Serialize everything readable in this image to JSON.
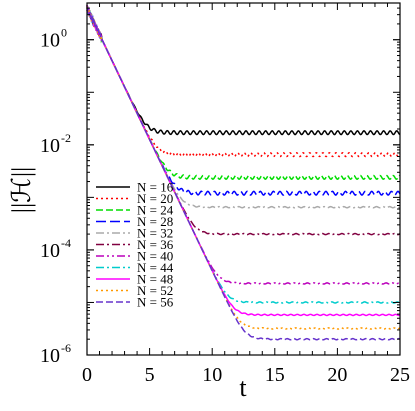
{
  "chart_data": {
    "type": "line",
    "xlabel": "t",
    "ylabel": "||ℋ||",
    "x_ticks": [
      "0",
      "5",
      "10",
      "15",
      "20",
      "25"
    ],
    "xlim": [
      0,
      25
    ],
    "ylim": [
      1e-06,
      5
    ],
    "yscale": "log",
    "y_ticks": [
      {
        "base": "10",
        "exp": "0",
        "value": 1
      },
      {
        "base": "10",
        "exp": "-2",
        "value": 0.01
      },
      {
        "base": "10",
        "exp": "-4",
        "value": 0.0001
      },
      {
        "base": "10",
        "exp": "-6",
        "value": 1e-06
      }
    ],
    "grid": false,
    "legend_position": "bottom-left",
    "decay": {
      "start_t": 0,
      "start_y": 4.0,
      "rate_per_unit_t": 0.5
    },
    "series": [
      {
        "name": "N = 16",
        "plateau": 0.017,
        "color": "#000000",
        "dash": "none"
      },
      {
        "name": "N = 20",
        "plateau": 0.0065,
        "color": "#ff0000",
        "dash": "2,3"
      },
      {
        "name": "N = 24",
        "plateau": 0.0024,
        "color": "#00dd00",
        "dash": "7,3"
      },
      {
        "name": "N = 28",
        "plateau": 0.0012,
        "color": "#0000ff",
        "dash": "10,4"
      },
      {
        "name": "N = 32",
        "plateau": 0.00065,
        "color": "#aaaaaa",
        "dash": "8,3,2,3"
      },
      {
        "name": "N = 36",
        "plateau": 0.0002,
        "color": "#800040",
        "dash": "8,3,2,3"
      },
      {
        "name": "N = 40",
        "plateau": 2.3e-05,
        "color": "#bb00bb",
        "dash": "8,3,2,3,2,3"
      },
      {
        "name": "N = 44",
        "plateau": 1e-05,
        "color": "#00cccc",
        "dash": "8,3,2,3"
      },
      {
        "name": "N = 48",
        "plateau": 5.8e-06,
        "color": "#ff00ff",
        "dash": "none"
      },
      {
        "name": "N = 52",
        "plateau": 3.2e-06,
        "color": "#ff9900",
        "dash": "2,3"
      },
      {
        "name": "N = 56",
        "plateau": 2e-06,
        "color": "#6633cc",
        "dash": "7,3"
      }
    ]
  }
}
